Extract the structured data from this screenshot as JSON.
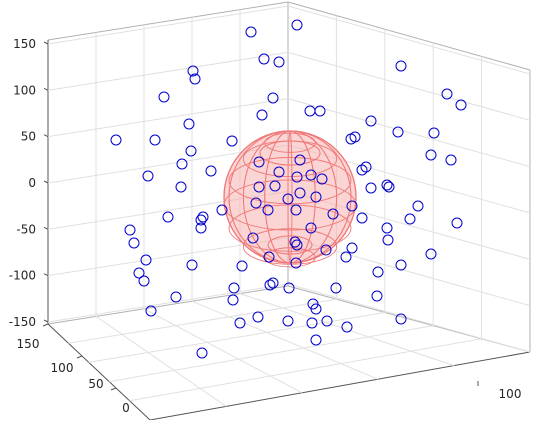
{
  "colors": {
    "marker": "#0000cc",
    "mesh": "#f07878",
    "mesh_fill": "#f8b0b0",
    "box": "#b0b0b0",
    "grid": "#e0e0e0",
    "text": "#262626"
  },
  "chart_data": {
    "type": "scatter",
    "view": "3d",
    "grid": true,
    "z_ticks": [
      "150",
      "100",
      "50",
      "0",
      "-50",
      "-100",
      "-150"
    ],
    "y_ticks": [
      "150",
      "100",
      "50",
      "0"
    ],
    "x_ticks": [
      "100"
    ],
    "zlim": [
      -150,
      150
    ],
    "marker": "circle",
    "points": [
      [
        251,
        32
      ],
      [
        297,
        25
      ],
      [
        264,
        59
      ],
      [
        193,
        71
      ],
      [
        195,
        79
      ],
      [
        279,
        62
      ],
      [
        401,
        66
      ],
      [
        164,
        97
      ],
      [
        273,
        98
      ],
      [
        447,
        94
      ],
      [
        461,
        105
      ],
      [
        262,
        115
      ],
      [
        310,
        111
      ],
      [
        320,
        111
      ],
      [
        189,
        124
      ],
      [
        371,
        121
      ],
      [
        116,
        140
      ],
      [
        155,
        140
      ],
      [
        232,
        141
      ],
      [
        351,
        139
      ],
      [
        355,
        137
      ],
      [
        398,
        132
      ],
      [
        434,
        133
      ],
      [
        191,
        151
      ],
      [
        182,
        164
      ],
      [
        259,
        162
      ],
      [
        300,
        160
      ],
      [
        366,
        167
      ],
      [
        362,
        170
      ],
      [
        431,
        155
      ],
      [
        451,
        160
      ],
      [
        148,
        176
      ],
      [
        211,
        171
      ],
      [
        279,
        172
      ],
      [
        297,
        177
      ],
      [
        311,
        175
      ],
      [
        322,
        179
      ],
      [
        371,
        188
      ],
      [
        387,
        185
      ],
      [
        389,
        187
      ],
      [
        181,
        187
      ],
      [
        259,
        187
      ],
      [
        275,
        186
      ],
      [
        300,
        193
      ],
      [
        268,
        210
      ],
      [
        288,
        199
      ],
      [
        316,
        197
      ],
      [
        222,
        210
      ],
      [
        201,
        220
      ],
      [
        256,
        203
      ],
      [
        418,
        206
      ],
      [
        168,
        217
      ],
      [
        203,
        217
      ],
      [
        311,
        228
      ],
      [
        296,
        210
      ],
      [
        333,
        214
      ],
      [
        352,
        206
      ],
      [
        362,
        218
      ],
      [
        410,
        219
      ],
      [
        457,
        223
      ],
      [
        130,
        230
      ],
      [
        201,
        228
      ],
      [
        387,
        228
      ],
      [
        134,
        243
      ],
      [
        253,
        238
      ],
      [
        297,
        245
      ],
      [
        295,
        242
      ],
      [
        352,
        248
      ],
      [
        326,
        250
      ],
      [
        388,
        240
      ],
      [
        146,
        260
      ],
      [
        269,
        257
      ],
      [
        296,
        263
      ],
      [
        346,
        257
      ],
      [
        242,
        266
      ],
      [
        431,
        254
      ],
      [
        139,
        273
      ],
      [
        192,
        265
      ],
      [
        401,
        265
      ],
      [
        378,
        272
      ],
      [
        144,
        281
      ],
      [
        234,
        288
      ],
      [
        273,
        283
      ],
      [
        270,
        285
      ],
      [
        289,
        288
      ],
      [
        336,
        288
      ],
      [
        176,
        297
      ],
      [
        233,
        300
      ],
      [
        377,
        296
      ],
      [
        151,
        311
      ],
      [
        313,
        304
      ],
      [
        316,
        309
      ],
      [
        258,
        317
      ],
      [
        240,
        323
      ],
      [
        288,
        321
      ],
      [
        312,
        323
      ],
      [
        327,
        321
      ],
      [
        347,
        327
      ],
      [
        401,
        319
      ],
      [
        316,
        340
      ],
      [
        202,
        353
      ]
    ]
  }
}
